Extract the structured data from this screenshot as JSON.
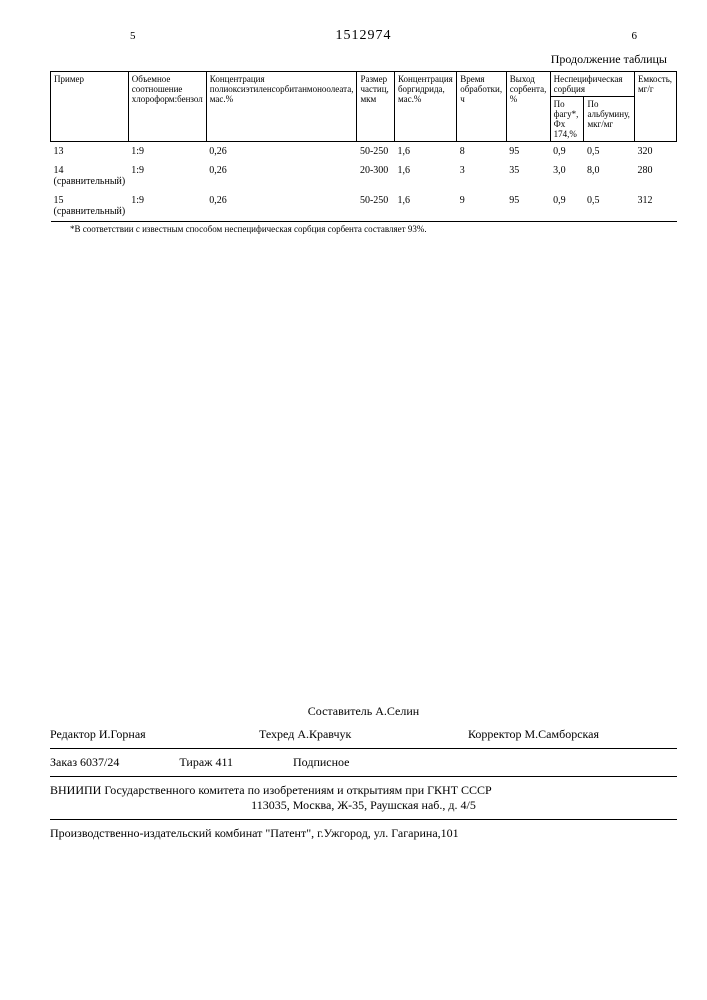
{
  "page_left": "5",
  "page_right": "6",
  "doc_number": "1512974",
  "continuation": "Продолжение таблицы",
  "headers": {
    "c1": "Пример",
    "c2": "Объемное соотношение хлороформ:бензол",
    "c3": "Концентрация полиоксиэтиленсорбитанмоноолеата, мас.%",
    "c4": "Размер частиц, мкм",
    "c5": "Концентрация боргидрида, мас.%",
    "c6": "Время обработки, ч",
    "c7": "Выход сорбента, %",
    "c8": "Неспецифическая сорбция",
    "c8a": "По фагу*, Фх 174,%",
    "c8b": "По альбумину, мкг/мг",
    "c9": "Емкость, мг/г"
  },
  "rows": [
    {
      "r1": "13",
      "r2": "1:9",
      "r3": "0,26",
      "r4": "50-250",
      "r5": "1,6",
      "r6": "8",
      "r7": "95",
      "r8": "0,9",
      "r9": "0,5",
      "r10": "320"
    },
    {
      "r1": "14 (сравнительный)",
      "r2": "1:9",
      "r3": "0,26",
      "r4": "20-300",
      "r5": "1,6",
      "r6": "3",
      "r7": "35",
      "r8": "3,0",
      "r9": "8,0",
      "r10": "280"
    },
    {
      "r1": "15 (сравнительный)",
      "r2": "1:9",
      "r3": "0,26",
      "r4": "50-250",
      "r5": "1,6",
      "r6": "9",
      "r7": "95",
      "r8": "0,9",
      "r9": "0,5",
      "r10": "312"
    }
  ],
  "footnote": "*В соответствии с известным способом неспецифическая сорбция сорбента составляет 93%.",
  "composer": "Составитель А.Селин",
  "editor": "Редактор И.Горная",
  "techred": "Техред А.Кравчук",
  "corrector": "Корректор М.Самборская",
  "order": "Заказ 6037/24",
  "tirazh": "Тираж 411",
  "podpis": "Подписное",
  "org": "ВНИИПИ Государственного комитета по изобретениям и открытиям при ГКНТ СССР",
  "org_addr": "113035, Москва, Ж-35, Раушская наб., д. 4/5",
  "prod": "Производственно-издательский комбинат \"Патент\", г.Ужгород, ул. Гагарина,101"
}
